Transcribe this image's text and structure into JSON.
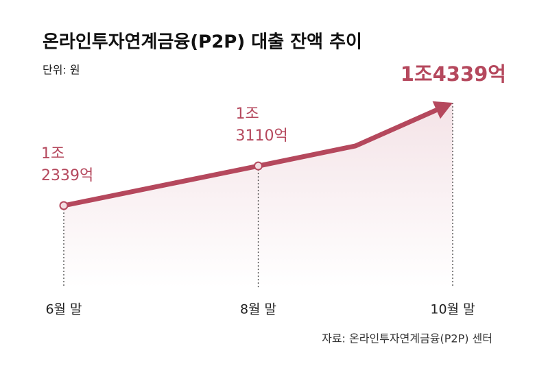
{
  "chart_data": {
    "type": "line",
    "title": "온라인투자연계금융(P2P) 대출 잔액 추이",
    "subtitle": "단위: 원",
    "source": "자료: 온라인투자연계금융(P2P) 센터",
    "categories": [
      "6월 말",
      null,
      "8월 말",
      null,
      "10월 말"
    ],
    "values": [
      12339,
      12725,
      13110,
      13500,
      14339
    ],
    "value_labels": [
      "1조 2339억",
      null,
      "1조 3110억",
      null,
      "1조4339억"
    ],
    "color": "#b5485d"
  }
}
